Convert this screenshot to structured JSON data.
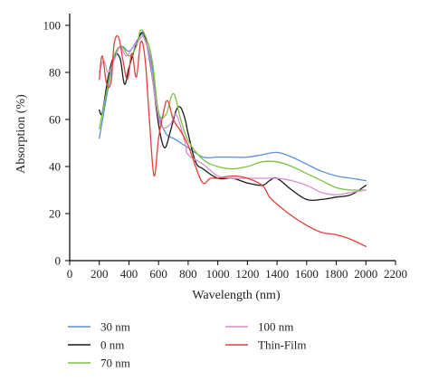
{
  "chart_data": {
    "type": "line",
    "title": "",
    "xlabel": "Wavelength (nm)",
    "ylabel": "Absorption (%)",
    "xlim": [
      0,
      2200
    ],
    "ylim": [
      0,
      105
    ],
    "xticks": [
      0,
      200,
      400,
      600,
      800,
      1000,
      1200,
      1400,
      1600,
      1800,
      2000,
      2200
    ],
    "yticks": [
      0,
      20,
      40,
      60,
      80,
      100
    ],
    "grid": false,
    "legend_position": "bottom",
    "series": [
      {
        "name": "30 nm",
        "color": "#5b8fd6",
        "x": [
          200,
          250,
          300,
          350,
          400,
          450,
          480,
          500,
          550,
          600,
          650,
          700,
          750,
          800,
          900,
          1000,
          1100,
          1200,
          1300,
          1400,
          1500,
          1600,
          1700,
          1800,
          1900,
          2000
        ],
        "y": [
          52,
          70,
          86,
          91,
          89,
          93,
          96,
          95,
          85,
          63,
          54,
          52,
          50,
          48,
          44,
          44,
          44,
          44,
          45,
          46,
          44,
          41,
          38,
          36,
          35,
          34
        ]
      },
      {
        "name": "0 nm",
        "color": "#1a1a1a",
        "x": [
          200,
          220,
          260,
          300,
          340,
          370,
          400,
          450,
          490,
          520,
          560,
          600,
          640,
          680,
          720,
          750,
          780,
          800,
          850,
          900,
          1000,
          1100,
          1200,
          1300,
          1350,
          1400,
          1500,
          1600,
          1700,
          1800,
          1900,
          2000
        ],
        "y": [
          64,
          63,
          78,
          87,
          86,
          75,
          82,
          92,
          97,
          92,
          77,
          58,
          48,
          55,
          64,
          65,
          60,
          54,
          42,
          39,
          35,
          35,
          33,
          32,
          34,
          35,
          30,
          26,
          26,
          27,
          28,
          32
        ]
      },
      {
        "name": "70 nm",
        "color": "#7cc142",
        "x": [
          200,
          250,
          300,
          350,
          400,
          450,
          480,
          520,
          560,
          600,
          650,
          700,
          750,
          800,
          900,
          1000,
          1100,
          1200,
          1300,
          1400,
          1500,
          1600,
          1700,
          1800,
          1900,
          2000
        ],
        "y": [
          56,
          72,
          87,
          91,
          87,
          91,
          98,
          94,
          84,
          63,
          62,
          71,
          60,
          51,
          43,
          40,
          39,
          40,
          42,
          42,
          40,
          37,
          34,
          31,
          30,
          30
        ]
      },
      {
        "name": "100 nm",
        "color": "#d98ccc",
        "x": [
          200,
          230,
          260,
          300,
          340,
          380,
          420,
          460,
          500,
          540,
          580,
          620,
          680,
          720,
          780,
          800,
          900,
          1000,
          1100,
          1200,
          1300,
          1400,
          1500,
          1600,
          1700,
          1800,
          1900,
          2000
        ],
        "y": [
          80,
          85,
          80,
          85,
          91,
          87,
          90,
          93,
          95,
          86,
          68,
          57,
          58,
          62,
          50,
          45,
          41,
          36,
          35,
          35,
          35,
          35,
          34,
          32,
          29,
          28,
          29,
          30
        ]
      },
      {
        "name": "Thin-Film",
        "color": "#e0413a",
        "x": [
          200,
          220,
          250,
          280,
          300,
          330,
          360,
          390,
          420,
          450,
          480,
          510,
          540,
          570,
          600,
          630,
          660,
          700,
          750,
          800,
          850,
          900,
          950,
          1000,
          1100,
          1200,
          1300,
          1350,
          1400,
          1500,
          1600,
          1700,
          1800,
          1900,
          2000
        ],
        "y": [
          77,
          87,
          75,
          76,
          92,
          95,
          85,
          77,
          88,
          78,
          93,
          85,
          58,
          36,
          52,
          62,
          68,
          60,
          55,
          49,
          40,
          33,
          35,
          35,
          36,
          35,
          32,
          27,
          24,
          19,
          15,
          12,
          11,
          9,
          6
        ]
      }
    ]
  }
}
